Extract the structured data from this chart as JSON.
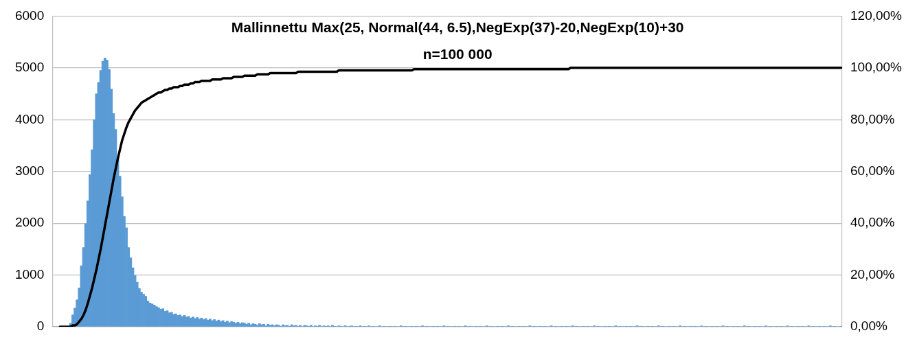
{
  "chart_data": {
    "type": "bar",
    "title": "Mallinnettu Max(25, Normal(44, 6.5),NegExp(37)-20,NegExp(10)+30",
    "subtitle": "n=100 000",
    "categories": [
      null,
      null,
      null,
      null,
      null,
      null,
      null,
      null,
      null,
      null,
      null,
      null,
      null,
      null,
      null,
      null,
      null,
      null,
      null,
      null,
      null,
      null,
      null,
      null,
      null,
      null,
      null,
      null,
      null,
      null,
      null,
      null,
      null,
      null,
      null,
      null,
      null,
      null,
      null,
      null,
      null,
      null,
      null,
      null,
      null,
      null,
      null,
      null,
      null,
      null,
      null,
      null,
      null,
      null,
      null,
      null,
      null,
      null,
      null,
      null,
      null,
      null,
      null,
      null,
      null,
      null,
      null,
      null,
      null,
      null,
      null,
      null,
      null,
      null,
      null,
      null,
      null,
      null,
      null,
      null,
      null,
      null,
      null,
      null,
      null,
      null,
      null,
      null,
      null,
      null,
      null,
      null,
      null,
      null,
      null,
      null,
      null,
      null,
      null,
      null,
      null,
      null,
      null,
      null,
      null,
      null,
      null,
      null,
      null,
      null,
      null,
      null,
      null,
      null,
      null,
      null,
      null,
      null,
      null,
      null,
      null,
      null,
      null,
      null,
      null,
      null,
      null,
      null,
      null,
      null,
      null,
      null,
      null,
      null,
      null,
      null,
      null,
      null,
      null,
      null,
      null,
      null,
      null,
      null,
      null,
      null,
      null,
      null,
      null,
      null,
      null,
      null,
      null,
      null,
      null,
      null,
      null,
      null,
      null,
      null,
      null,
      null,
      null,
      null,
      null,
      null,
      null,
      null,
      null,
      null,
      null,
      null,
      null,
      null,
      null,
      null,
      null,
      null,
      null,
      null,
      null,
      null,
      null,
      null,
      null,
      null,
      null,
      null,
      null,
      null,
      null,
      null,
      null,
      null,
      null,
      null,
      null,
      null,
      null,
      null,
      null,
      null,
      null,
      null,
      null,
      null,
      null,
      null,
      null,
      null,
      null,
      null,
      null,
      null,
      null,
      null,
      null,
      null,
      null,
      null,
      null,
      null,
      null,
      null,
      null,
      null,
      null,
      null,
      null,
      null,
      null,
      null,
      null,
      null,
      null,
      null,
      null,
      null,
      null,
      null,
      null,
      null,
      null,
      null,
      null,
      null,
      null,
      null,
      null,
      null,
      null,
      null,
      null,
      null,
      null,
      null,
      null,
      null,
      null,
      null,
      null,
      null,
      null,
      null,
      null,
      null,
      null,
      null,
      null,
      null,
      null,
      null,
      null,
      null,
      null,
      null,
      null,
      null,
      null,
      null,
      null,
      null,
      null,
      null,
      null,
      null,
      null,
      null,
      null,
      null,
      null,
      null,
      null,
      null,
      null,
      null,
      null,
      null,
      null,
      null,
      null,
      null,
      null,
      null,
      null,
      null,
      null,
      null,
      null,
      null,
      null,
      null,
      null,
      null,
      null,
      null,
      null,
      null,
      null,
      null,
      null,
      null,
      null,
      null,
      null,
      null,
      null,
      null,
      null,
      null,
      null,
      null,
      null,
      null,
      null,
      null,
      null,
      null,
      null,
      null,
      null,
      null,
      null,
      null,
      null,
      null,
      null,
      null,
      null,
      null,
      null,
      null,
      null,
      null,
      null,
      null,
      null,
      null,
      null,
      null,
      null,
      null,
      null,
      null,
      null,
      null,
      null,
      null
    ],
    "series": [
      {
        "color": "#5b9bd5",
        "values": [
          0,
          0,
          0,
          0,
          0,
          0,
          0,
          0,
          70,
          230,
          360,
          520,
          750,
          1180,
          1530,
          1990,
          2430,
          2940,
          3420,
          4000,
          4500,
          4720,
          4950,
          5130,
          5190,
          5150,
          4970,
          4590,
          4120,
          3810,
          3280,
          2910,
          2510,
          2130,
          1910,
          1530,
          1330,
          1140,
          990,
          860,
          740,
          670,
          630,
          590,
          500,
          460,
          440,
          420,
          390,
          370,
          340,
          350,
          300,
          310,
          270,
          280,
          240,
          250,
          220,
          230,
          200,
          220,
          190,
          200,
          170,
          190,
          160,
          180,
          150,
          170,
          140,
          160,
          130,
          150,
          120,
          140,
          110,
          130,
          100,
          120,
          90,
          110,
          80,
          100,
          90,
          70,
          90,
          60,
          80,
          70,
          50,
          70,
          40,
          60,
          50,
          30,
          60,
          40,
          50,
          20,
          50,
          30,
          40,
          20,
          40,
          30,
          10,
          40,
          20,
          30,
          10,
          40,
          20,
          30,
          10,
          30,
          0,
          30,
          20,
          10,
          30,
          0,
          20,
          10,
          30,
          0,
          20,
          10,
          20,
          0,
          30,
          10,
          0,
          20,
          10,
          0,
          20,
          0,
          10,
          20,
          0,
          10,
          0,
          20,
          0,
          10,
          0,
          20,
          0,
          10,
          0,
          0,
          20,
          0,
          10,
          0,
          0,
          10,
          0,
          10,
          0,
          0,
          20,
          0,
          10,
          0,
          0,
          10,
          0,
          10,
          0,
          0,
          20,
          0,
          10,
          0,
          0,
          10,
          0,
          10,
          0,
          0,
          20,
          0,
          10,
          0,
          0,
          10,
          0,
          10,
          0,
          0,
          20,
          0,
          10,
          0,
          0,
          10,
          0,
          10,
          0,
          0,
          20,
          0,
          10,
          0,
          0,
          10,
          0,
          10,
          0,
          0,
          20,
          0,
          10,
          0,
          0,
          10,
          0,
          10,
          0,
          0,
          20,
          0,
          10,
          0,
          0,
          10,
          0,
          10,
          0,
          0,
          20,
          0,
          10,
          0,
          0,
          10,
          0,
          10,
          0,
          0,
          20,
          0,
          10,
          0,
          0,
          10,
          0,
          10,
          0,
          0,
          20,
          0,
          10,
          0,
          0,
          10,
          0,
          10,
          0,
          0,
          20,
          0,
          10,
          0,
          0,
          10,
          0,
          10,
          0,
          0,
          20,
          0,
          10,
          0,
          0,
          10,
          0,
          10,
          0,
          0,
          20,
          0,
          10,
          0,
          0,
          10,
          0,
          10,
          0,
          0,
          20,
          0,
          10,
          0,
          0,
          10,
          0,
          10,
          0,
          0,
          20,
          0,
          10,
          0,
          0,
          10,
          0,
          10,
          0,
          0,
          20,
          0,
          10,
          0,
          0,
          10,
          0,
          10,
          0,
          0,
          20,
          0,
          10,
          0,
          0,
          10,
          0,
          10,
          0,
          0,
          20,
          0,
          10,
          0,
          0,
          10,
          0,
          10,
          0,
          0,
          20,
          0,
          10,
          0,
          0,
          10,
          0,
          10,
          0,
          0,
          20,
          0,
          10,
          0,
          0,
          10,
          0,
          10,
          0,
          0,
          20,
          0,
          10,
          0,
          0,
          10
        ]
      },
      {
        "type": "line",
        "axis": "y2",
        "color": "#000000",
        "values": [
          null,
          null,
          null,
          0,
          0,
          0,
          0,
          0,
          0,
          0.5,
          0.5,
          1,
          2,
          3,
          4.5,
          6.5,
          9,
          12,
          15,
          18.5,
          22,
          26,
          30,
          34.5,
          39,
          43.5,
          48,
          52.5,
          57,
          61,
          65,
          68.5,
          72,
          74.5,
          77,
          79,
          80.5,
          82,
          83.5,
          84.5,
          85.5,
          86.5,
          87,
          87.5,
          88,
          88.5,
          89,
          89.5,
          90,
          90.5,
          90.5,
          91,
          91.5,
          91.5,
          92,
          92,
          92.5,
          92.5,
          92.5,
          93,
          93,
          93.5,
          93.5,
          93.5,
          94,
          94,
          94.5,
          94.5,
          94.5,
          95,
          95,
          95,
          95,
          95,
          95.5,
          95.5,
          95.5,
          95.5,
          95.5,
          96,
          96,
          96,
          96,
          96,
          96.5,
          96.5,
          96.5,
          96.5,
          96.5,
          97,
          97,
          97,
          97,
          97,
          97,
          97.5,
          97.5,
          97.5,
          97.5,
          97.5,
          97.5,
          98,
          98,
          98,
          98,
          98,
          98,
          98,
          98,
          98,
          98,
          98,
          98,
          98,
          98.5,
          98.5,
          98.5,
          98.5,
          98.5,
          98.5,
          98.5,
          98.5,
          98.5,
          98.5,
          98.5,
          98.5,
          98.5,
          98.5,
          98.5,
          98.5,
          98.5,
          98.5,
          98.5,
          99,
          99,
          99,
          99,
          99,
          99,
          99,
          99,
          99,
          99,
          99,
          99,
          99,
          99,
          99,
          99,
          99,
          99,
          99,
          99,
          99,
          99,
          99,
          99,
          99,
          99,
          99,
          99,
          99,
          99,
          99,
          99,
          99,
          99,
          99,
          99.5,
          99.5,
          99.5,
          99.5,
          99.5,
          99.5,
          99.5,
          99.5,
          99.5,
          99.5,
          99.5,
          99.5,
          99.5,
          99.5,
          99.5,
          99.5,
          99.5,
          99.5,
          99.5,
          99.5,
          99.5,
          99.5,
          99.5,
          99.5,
          99.5,
          99.5,
          99.5,
          99.5,
          99.5,
          99.5,
          99.5,
          99.5,
          99.5,
          99.5,
          99.5,
          99.5,
          99.5,
          99.5,
          99.5,
          99.5,
          99.5,
          99.5,
          99.5,
          99.5,
          99.5,
          99.5,
          99.5,
          99.5,
          99.5,
          99.5,
          99.5,
          99.5,
          99.5,
          99.5,
          99.5,
          99.5,
          99.5,
          99.5,
          99.5,
          99.5,
          99.5,
          99.5,
          99.5,
          99.5,
          99.5,
          99.5,
          99.5,
          99.5,
          99.5,
          99.5,
          99.5,
          99.5,
          99.5,
          100,
          100,
          100,
          100,
          100,
          100,
          100,
          100,
          100,
          100,
          100,
          100,
          100,
          100,
          100,
          100,
          100,
          100,
          100,
          100,
          100,
          100,
          100,
          100,
          100,
          100,
          100,
          100,
          100,
          100,
          100,
          100,
          100,
          100,
          100,
          100,
          100,
          100,
          100,
          100,
          100,
          100,
          100,
          100,
          100,
          100,
          100,
          100,
          100,
          100,
          100,
          100,
          100,
          100,
          100,
          100,
          100,
          100,
          100,
          100,
          100,
          100,
          100,
          100,
          100,
          100,
          100,
          100,
          100,
          100,
          100,
          100,
          100,
          100,
          100,
          100,
          100,
          100,
          100,
          100,
          100,
          100,
          100,
          100,
          100,
          100,
          100,
          100,
          100,
          100,
          100,
          100,
          100,
          100,
          100,
          100,
          100,
          100,
          100,
          100,
          100,
          100,
          100,
          100,
          100,
          100,
          100,
          100,
          100,
          100,
          100,
          100,
          100,
          100,
          100,
          100,
          100,
          100,
          100,
          100,
          100,
          100,
          100,
          100,
          100,
          100,
          100
        ]
      }
    ],
    "ylim": [
      0,
      6000
    ],
    "yticks": [
      0,
      1000,
      2000,
      3000,
      4000,
      5000,
      6000
    ],
    "y2lim": [
      0,
      120
    ],
    "y2ticks": [
      {
        "value": 0,
        "label": "0,00%"
      },
      {
        "value": 20,
        "label": "20,00%"
      },
      {
        "value": 40,
        "label": "40,00%"
      },
      {
        "value": 60,
        "label": "60,00%"
      },
      {
        "value": 80,
        "label": "80,00%"
      },
      {
        "value": 100,
        "label": "100,00%"
      },
      {
        "value": 120,
        "label": "120,00%"
      }
    ],
    "grid": "y",
    "legend": false,
    "tick_labels": "y"
  }
}
